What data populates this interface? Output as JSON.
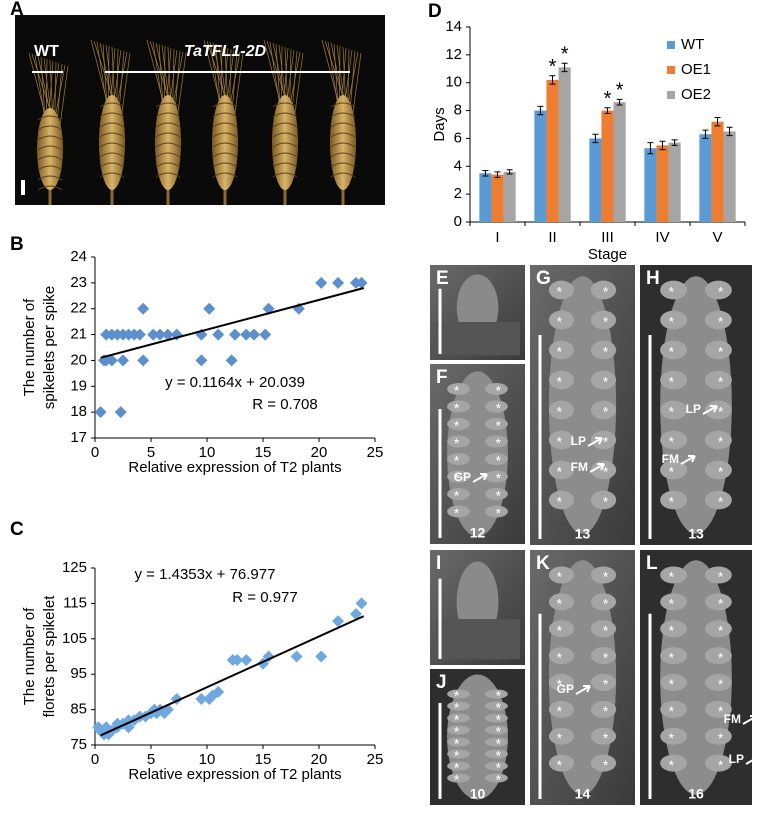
{
  "chart_data": [
    {
      "type": "scatter",
      "color": "#5b8fce",
      "x": [
        0.5,
        0.8,
        1,
        1,
        1.5,
        1.5,
        2,
        2.3,
        2.5,
        2.5,
        3,
        3.5,
        4,
        4.3,
        4.3,
        5.2,
        5.8,
        6.5,
        7.3,
        9.5,
        9.5,
        10.2,
        11,
        12.2,
        12.5,
        13.5,
        14.2,
        15.2,
        15.5,
        18.2,
        20.2,
        21.7,
        23.3,
        23.8
      ],
      "y": [
        18,
        20,
        21,
        20,
        20,
        21,
        21,
        18,
        21,
        20,
        21,
        21,
        21,
        22,
        20,
        21,
        21,
        21,
        21,
        21,
        20,
        22,
        21,
        20,
        21,
        21,
        21,
        21,
        22,
        22,
        23,
        23,
        23,
        23
      ],
      "fit_x": [
        0.5,
        24
      ],
      "fit_y": [
        20.1,
        22.8
      ],
      "equation": "y = 0.1164x + 20.039",
      "r_label": "R = 0.708",
      "xlabel": "Relative expression of T2 plants",
      "ylabel": [
        "The number of",
        "spikelets  per spike"
      ],
      "xlim": [
        0,
        25
      ],
      "xticks": [
        0,
        5,
        10,
        15,
        20,
        25
      ],
      "ylim": [
        17,
        24
      ],
      "yticks": [
        17,
        18,
        19,
        20,
        21,
        22,
        23,
        24
      ]
    },
    {
      "type": "scatter",
      "color": "#6fa8e0",
      "x": [
        0.3,
        0.5,
        0.8,
        1,
        1.2,
        1.5,
        2,
        2,
        2.5,
        3,
        3,
        3.5,
        4,
        4.5,
        5,
        5.3,
        5.5,
        5.8,
        6.2,
        6.5,
        7.3,
        9.5,
        10.2,
        10.5,
        11,
        12.3,
        12.7,
        13.5,
        15,
        15.5,
        18,
        20.2,
        21.7,
        23.3,
        23.8
      ],
      "y": [
        80,
        79,
        78,
        80,
        78,
        79,
        80,
        81,
        81,
        80,
        82,
        82,
        83,
        83,
        84,
        85,
        84,
        85,
        84,
        85,
        88,
        88,
        88,
        89,
        90,
        99,
        99,
        99,
        98,
        100,
        100,
        100,
        110,
        112,
        115
      ],
      "fit_x": [
        0.5,
        24
      ],
      "fit_y": [
        77.7,
        111.4
      ],
      "equation": "y = 1.4353x + 76.977",
      "r_label": "R = 0.977",
      "xlabel": "Relative expression of T2 plants",
      "ylabel": [
        "The number of",
        "florets per spikelet"
      ],
      "xlim": [
        0,
        25
      ],
      "xticks": [
        0,
        5,
        10,
        15,
        20,
        25
      ],
      "ylim": [
        75,
        125
      ],
      "yticks": [
        75,
        85,
        95,
        105,
        115,
        125
      ]
    },
    {
      "type": "bar",
      "categories": [
        "I",
        "II",
        "III",
        "IV",
        "V"
      ],
      "series": [
        {
          "name": "WT",
          "color": "#5b9bd5",
          "values": [
            3.5,
            8,
            6,
            5.3,
            6.3
          ],
          "errors": [
            0.2,
            0.3,
            0.3,
            0.4,
            0.3
          ],
          "significance": [
            null,
            null,
            null,
            null,
            null
          ]
        },
        {
          "name": "OE1",
          "color": "#ed7d31",
          "values": [
            3.4,
            10.2,
            8,
            5.5,
            7.2
          ],
          "errors": [
            0.2,
            0.3,
            0.2,
            0.3,
            0.3
          ],
          "significance": [
            null,
            "*",
            "*",
            null,
            null
          ]
        },
        {
          "name": "OE2",
          "color": "#a5a5a5",
          "values": [
            3.6,
            11.1,
            8.6,
            5.7,
            6.5
          ],
          "errors": [
            0.15,
            0.3,
            0.2,
            0.2,
            0.3
          ],
          "significance": [
            null,
            "*",
            "*",
            null,
            null
          ]
        }
      ],
      "xlabel": "Stage",
      "ylabel": "Days",
      "legend": "upper right",
      "ylim": [
        0,
        14
      ],
      "yticks": [
        0,
        2,
        4,
        6,
        8,
        10,
        12,
        14
      ]
    }
  ],
  "panels": {
    "A": {
      "label": "A",
      "wt": "WT",
      "line": "TaTFL1-2D"
    },
    "B": "B",
    "C": "C",
    "D": "D",
    "sem": [
      {
        "label": "E"
      },
      {
        "label": "F",
        "stage": 12,
        "marks": [
          "GP"
        ]
      },
      {
        "label": "G",
        "stage": 13,
        "marks": [
          "LP",
          "FM"
        ]
      },
      {
        "label": "H",
        "stage": 13,
        "marks": [
          "LP",
          "FM"
        ]
      },
      {
        "label": "I"
      },
      {
        "label": "J",
        "stage": 10
      },
      {
        "label": "K",
        "stage": 14,
        "marks": [
          "GP"
        ]
      },
      {
        "label": "L",
        "stage": 16,
        "marks": [
          "FM",
          "LP"
        ]
      }
    ],
    "asterisk": "*"
  }
}
